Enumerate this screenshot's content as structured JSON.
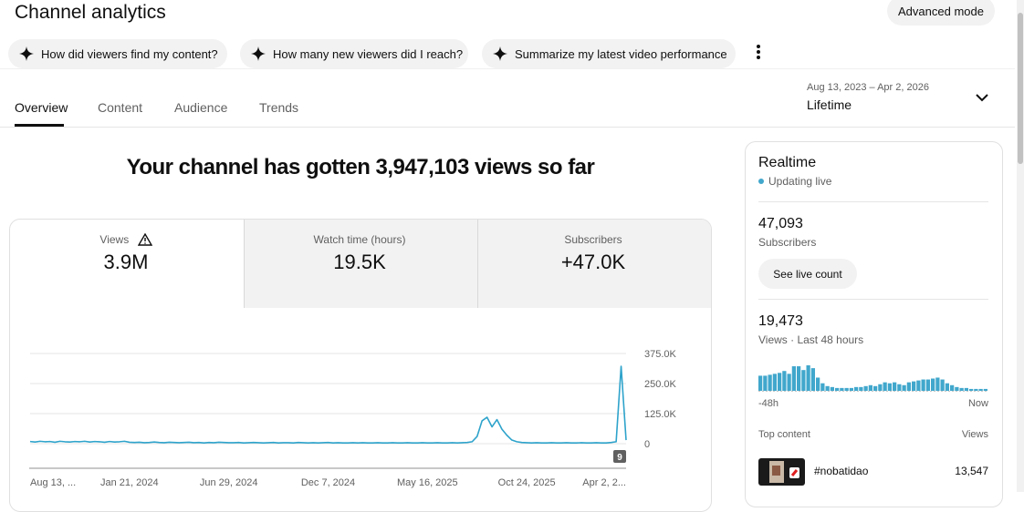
{
  "header": {
    "title": "Channel analytics",
    "advanced_mode": "Advanced mode"
  },
  "suggestions": [
    "How did viewers find my content?",
    "How many new viewers did I reach?",
    "Summarize my latest video performance"
  ],
  "tabs": [
    "Overview",
    "Content",
    "Audience",
    "Trends"
  ],
  "date_range": {
    "range": "Aug 13, 2023 – Apr 2, 2026",
    "label": "Lifetime"
  },
  "headline": "Your channel has gotten 3,947,103 views so far",
  "metrics": [
    {
      "label": "Views",
      "value": "3.9M"
    },
    {
      "label": "Watch time (hours)",
      "value": "19.5K"
    },
    {
      "label": "Subscribers",
      "value": "+47.0K"
    }
  ],
  "realtime": {
    "title": "Realtime",
    "status": "Updating live",
    "subscribers": "47,093",
    "subscribers_label": "Subscribers",
    "live_button": "See live count",
    "views": "19,473",
    "views_label": "Views · Last 48 hours",
    "top_content_label": "Top content",
    "views_column": "Views",
    "top_content": [
      {
        "title": "#nobatidao",
        "views": "13,547"
      }
    ]
  },
  "chart_data": [
    {
      "type": "line",
      "categories": [
        "Aug 13, ...",
        null,
        null,
        null,
        null,
        null,
        null,
        null,
        null,
        null,
        null,
        null,
        null,
        null,
        null,
        null,
        null,
        null,
        null,
        null,
        "Jan 21, 2024",
        null,
        null,
        null,
        null,
        null,
        null,
        null,
        null,
        null,
        null,
        null,
        null,
        null,
        null,
        null,
        null,
        null,
        null,
        null,
        "Jun 29, 2024",
        null,
        null,
        null,
        null,
        null,
        null,
        null,
        null,
        null,
        null,
        null,
        null,
        null,
        null,
        null,
        null,
        null,
        null,
        null,
        "Dec 7, 2024",
        null,
        null,
        null,
        null,
        null,
        null,
        null,
        null,
        null,
        null,
        null,
        null,
        null,
        null,
        null,
        null,
        null,
        null,
        null,
        "May 16, 2025",
        null,
        null,
        null,
        null,
        null,
        null,
        null,
        null,
        null,
        null,
        null,
        null,
        null,
        null,
        null,
        null,
        null,
        null,
        null,
        "Oct 24, 2025",
        null,
        null,
        null,
        null,
        null,
        null,
        null,
        null,
        null,
        null,
        null,
        null,
        null,
        null,
        null,
        null,
        null,
        null,
        null,
        "Apr 2, 2..."
      ],
      "values": [
        9000,
        7000,
        10000,
        8000,
        9000,
        6000,
        10000,
        8000,
        7000,
        9000,
        8000,
        10000,
        7000,
        9000,
        8000,
        6000,
        9000,
        7000,
        8000,
        10000,
        6000,
        5000,
        6000,
        4000,
        5000,
        7000,
        5000,
        4000,
        6000,
        5000,
        4000,
        5000,
        6000,
        4000,
        5000,
        3000,
        5000,
        4000,
        6000,
        5000,
        4000,
        4000,
        5000,
        3000,
        4000,
        5000,
        4000,
        3000,
        4000,
        5000,
        3000,
        4000,
        4000,
        3000,
        5000,
        4000,
        3000,
        4000,
        3000,
        4000,
        5000,
        3000,
        4000,
        3000,
        3000,
        4000,
        3000,
        4000,
        3000,
        3000,
        4000,
        3000,
        3000,
        4000,
        3000,
        3000,
        4000,
        3000,
        3000,
        4000,
        3000,
        3000,
        4000,
        3000,
        3000,
        4000,
        3000,
        4000,
        5000,
        8000,
        30000,
        95000,
        110000,
        70000,
        100000,
        60000,
        35000,
        15000,
        8000,
        5000,
        4000,
        3000,
        4000,
        3000,
        3000,
        4000,
        3000,
        3000,
        4000,
        3000,
        3000,
        4000,
        3000,
        3000,
        4000,
        3000,
        3000,
        5000,
        8000,
        322000,
        15000
      ],
      "color": "#2ea3cb",
      "ylim": [
        0,
        375000
      ],
      "yticks": [
        0,
        {
          "value": 125000,
          "label": "125.0K"
        },
        {
          "value": 250000,
          "label": "250.0K"
        },
        {
          "value": 375000,
          "label": "375.0K"
        }
      ],
      "grid": true,
      "annotation": "9"
    },
    {
      "type": "bar",
      "values": [
        640,
        640,
        680,
        720,
        760,
        840,
        720,
        1040,
        1040,
        880,
        1080,
        960,
        560,
        320,
        200,
        160,
        120,
        120,
        120,
        120,
        160,
        160,
        200,
        240,
        200,
        280,
        360,
        320,
        360,
        280,
        240,
        360,
        400,
        440,
        480,
        480,
        520,
        560,
        480,
        320,
        240,
        160,
        120,
        120,
        80,
        80,
        80,
        80
      ],
      "color": "#41a7cc",
      "axis_labels": [
        "-48h",
        "Now"
      ]
    }
  ]
}
